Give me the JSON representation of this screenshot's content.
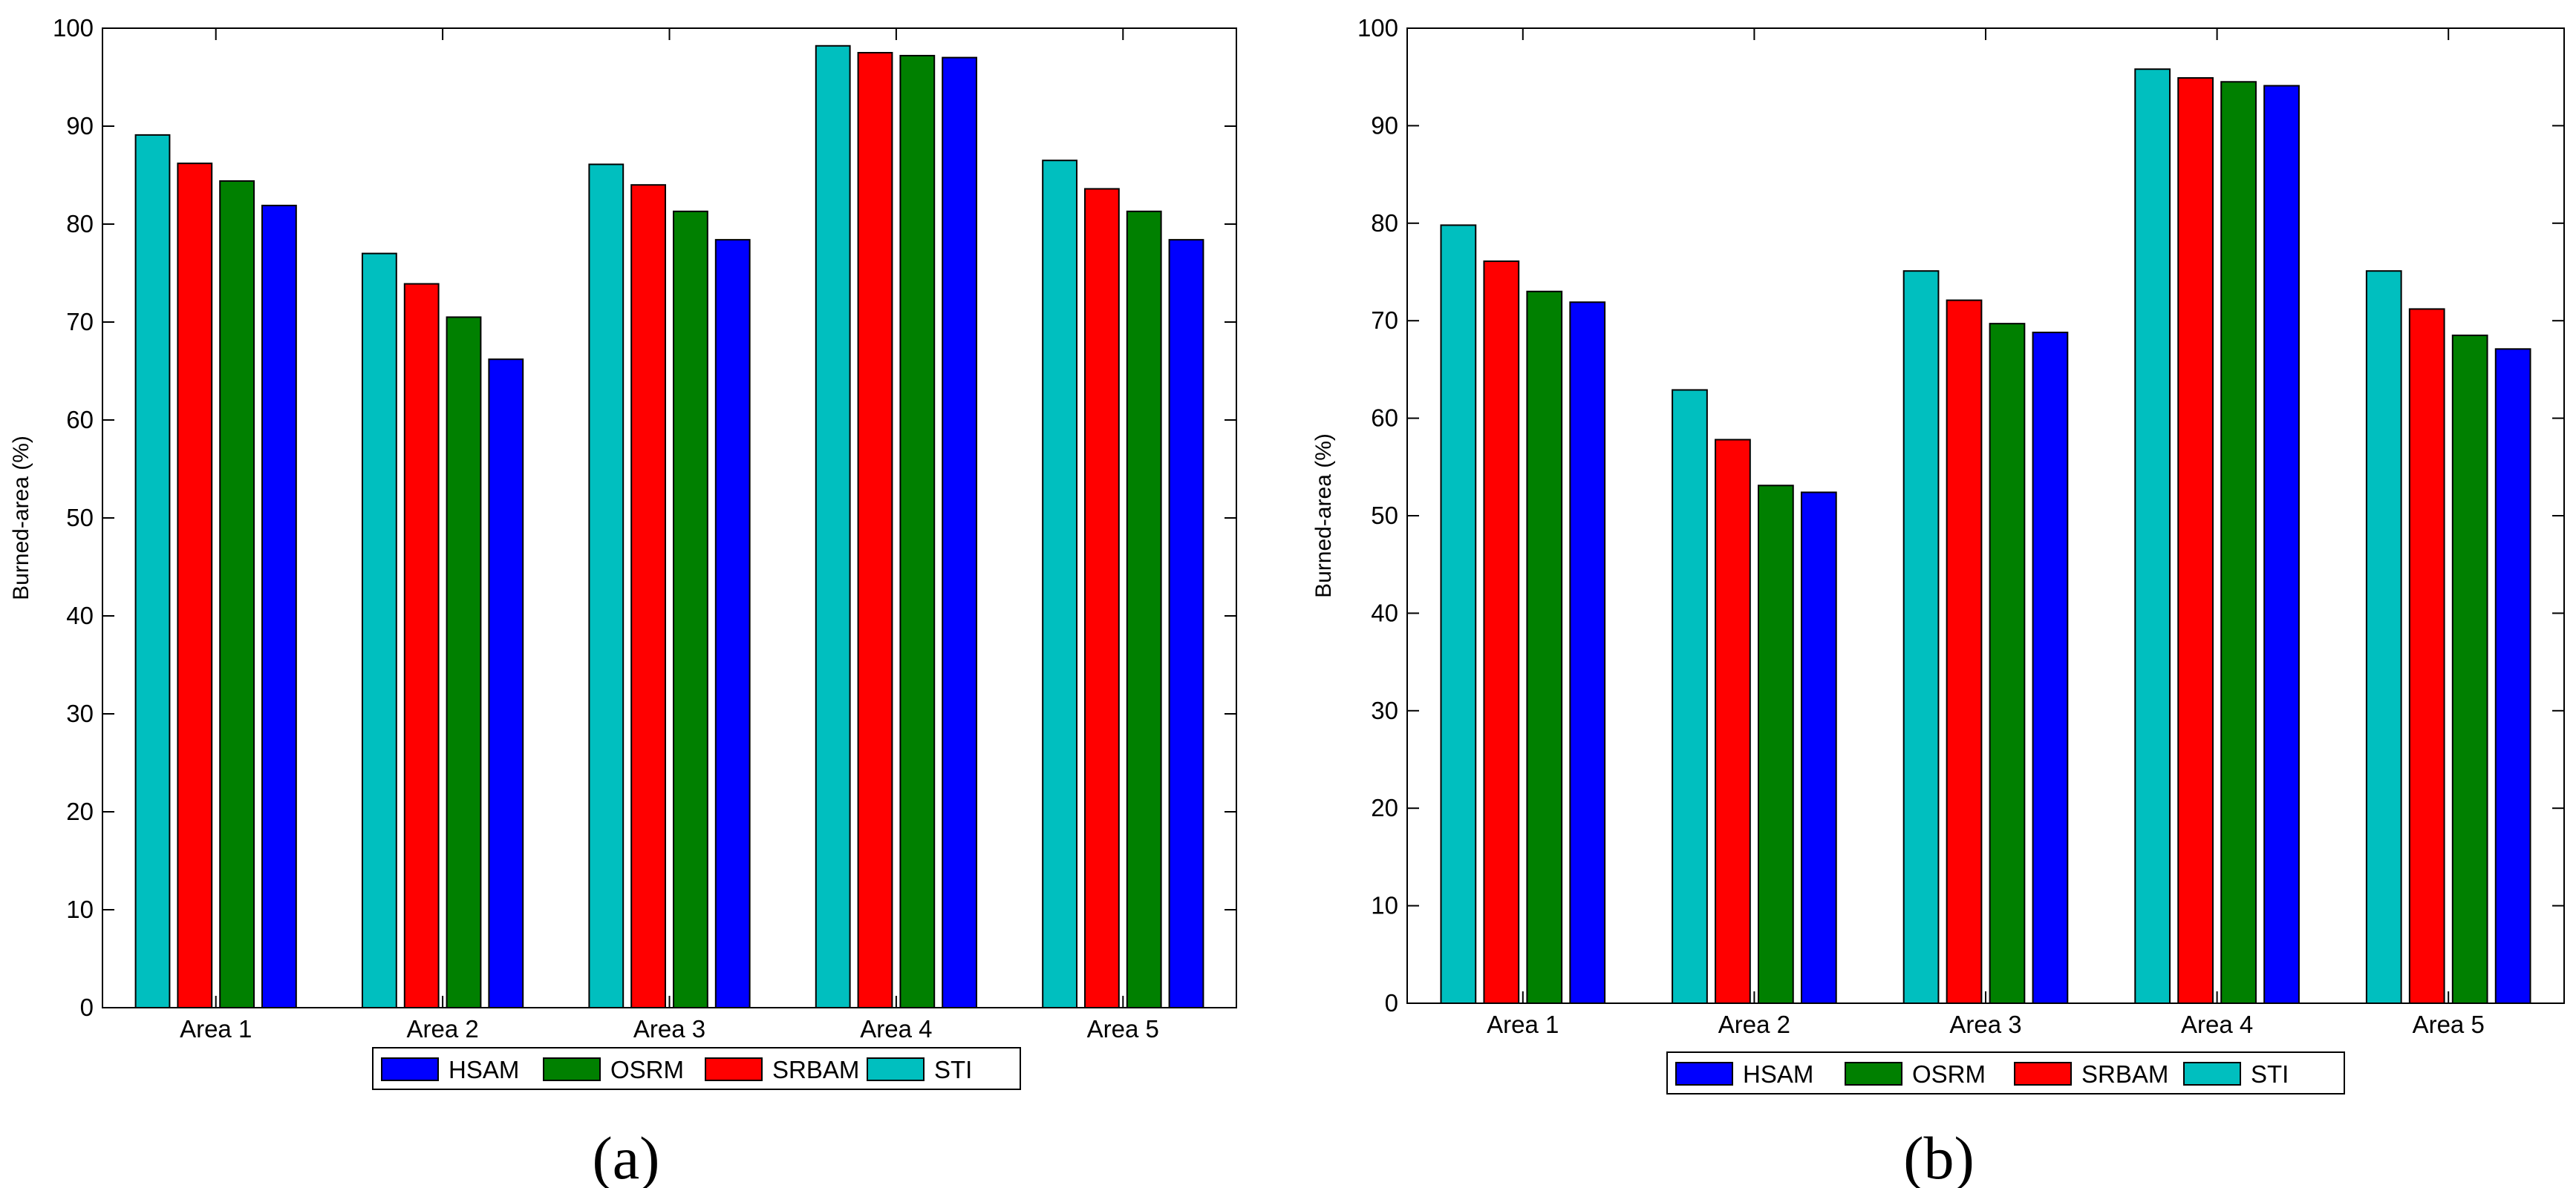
{
  "colors": {
    "HSAM": "#0000ff",
    "OSRM": "#008000",
    "SRBAM": "#ff0000",
    "STI": "#00bfbf"
  },
  "chart_data": [
    {
      "type": "bar",
      "caption": "(a)",
      "title": "",
      "xlabel": "",
      "ylabel": "Burned-area (%)",
      "ylim": [
        0,
        100
      ],
      "yticks": [
        0,
        10,
        20,
        30,
        40,
        50,
        60,
        70,
        80,
        90,
        100
      ],
      "categories": [
        "Area 1",
        "Area 2",
        "Area 3",
        "Area 4",
        "Area 5"
      ],
      "series": [
        {
          "name": "STI",
          "values": [
            89.1,
            77.0,
            86.1,
            98.2,
            86.5
          ]
        },
        {
          "name": "SRBAM",
          "values": [
            86.2,
            73.9,
            84.0,
            97.5,
            83.6
          ]
        },
        {
          "name": "OSRM",
          "values": [
            84.4,
            70.5,
            81.3,
            97.2,
            81.3
          ]
        },
        {
          "name": "HSAM",
          "values": [
            81.9,
            66.2,
            78.4,
            97.0,
            78.4
          ]
        }
      ],
      "legend": [
        "HSAM",
        "OSRM",
        "SRBAM",
        "STI"
      ]
    },
    {
      "type": "bar",
      "caption": "(b)",
      "title": "",
      "xlabel": "",
      "ylabel": "Burned-area (%)",
      "ylim": [
        0,
        100
      ],
      "yticks": [
        0,
        10,
        20,
        30,
        40,
        50,
        60,
        70,
        80,
        90,
        100
      ],
      "categories": [
        "Area 1",
        "Area 2",
        "Area 3",
        "Area 4",
        "Area 5"
      ],
      "series": [
        {
          "name": "STI",
          "values": [
            79.8,
            62.9,
            75.1,
            95.8,
            75.1
          ]
        },
        {
          "name": "SRBAM",
          "values": [
            76.1,
            57.8,
            72.1,
            94.9,
            71.2
          ]
        },
        {
          "name": "OSRM",
          "values": [
            73.0,
            53.1,
            69.7,
            94.5,
            68.5
          ]
        },
        {
          "name": "HSAM",
          "values": [
            71.9,
            52.4,
            68.8,
            94.1,
            67.1
          ]
        }
      ],
      "legend": [
        "HSAM",
        "OSRM",
        "SRBAM",
        "STI"
      ]
    }
  ]
}
